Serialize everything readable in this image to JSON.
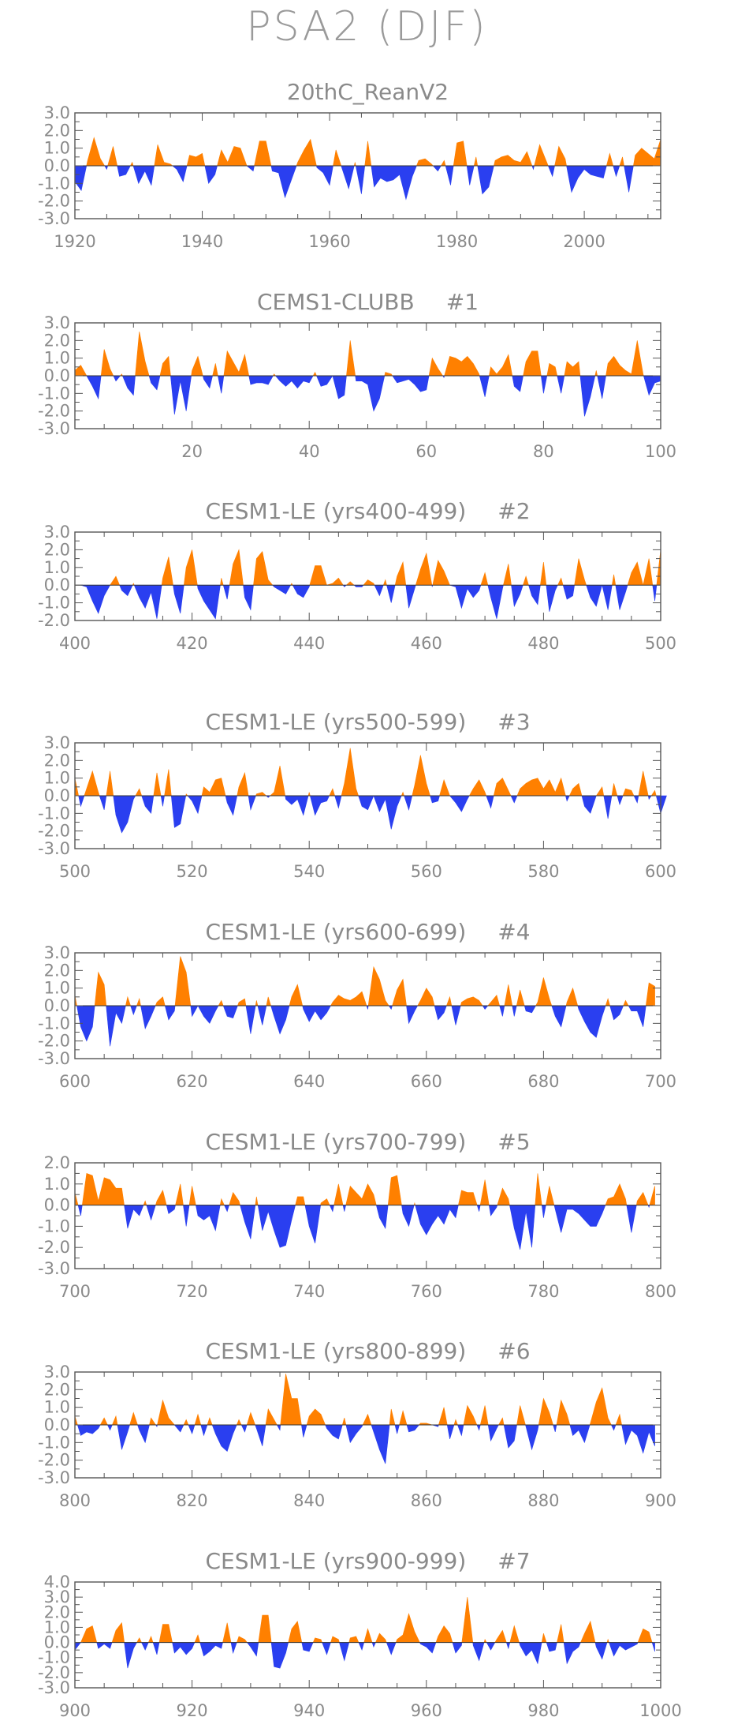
{
  "figure_title": "PSA2 (DJF)",
  "colors": {
    "positive": "#ff8000",
    "negative": "#2a3ff0",
    "axis": "#555555",
    "text": "#8a8a8a"
  },
  "chart_data": [
    {
      "type": "area",
      "title": "20thC_ReanV2",
      "xlim": [
        1920,
        2012
      ],
      "ylim": [
        -3.0,
        3.0
      ],
      "yticks": [
        "3.0",
        "2.0",
        "1.0",
        "0.0",
        "-1.0",
        "-2.0",
        "-3.0"
      ],
      "xticks": [
        1920,
        1940,
        1960,
        1980,
        2000
      ],
      "x_start": 1920,
      "values": [
        -0.9,
        -1.4,
        0.3,
        1.6,
        0.4,
        -0.2,
        1.1,
        -0.6,
        -0.5,
        0.2,
        -1.0,
        -0.3,
        -1.1,
        1.2,
        0.2,
        0.1,
        -0.2,
        -0.9,
        0.6,
        0.5,
        0.7,
        -1.0,
        -0.5,
        0.9,
        0.2,
        1.1,
        1.0,
        0.0,
        -0.3,
        1.4,
        1.4,
        -0.3,
        -0.4,
        -1.8,
        -0.8,
        0.2,
        0.9,
        1.5,
        -0.1,
        -0.4,
        -1.1,
        0.9,
        -0.2,
        -1.3,
        0.2,
        -1.6,
        1.4,
        -1.2,
        -0.7,
        -0.9,
        -0.8,
        -0.5,
        -1.9,
        -0.6,
        0.3,
        0.4,
        0.1,
        -0.3,
        0.3,
        -1.1,
        1.3,
        1.4,
        -1.1,
        0.5,
        -1.6,
        -1.2,
        0.3,
        0.5,
        0.6,
        0.3,
        0.2,
        0.8,
        -0.2,
        1.2,
        0.3,
        -0.6,
        1.1,
        0.4,
        -1.5,
        -0.7,
        -0.2,
        -0.5,
        -0.6,
        -0.7,
        0.7,
        -0.6,
        0.5,
        -1.5,
        0.6,
        1.0,
        0.7,
        0.4,
        1.5
      ]
    },
    {
      "type": "area",
      "title": "CEMS1-CLUBB",
      "title_suffix": "#1",
      "xlim": [
        0,
        100
      ],
      "ylim": [
        -3.0,
        3.0
      ],
      "yticks": [
        "3.0",
        "2.0",
        "1.0",
        "0.0",
        "-1.0",
        "-2.0",
        "-3.0"
      ],
      "xticks": [
        20,
        40,
        60,
        80,
        100
      ],
      "x_start": 0,
      "values": [
        0.3,
        0.6,
        0.0,
        -0.6,
        -1.3,
        1.5,
        0.4,
        -0.3,
        0.1,
        -0.7,
        -1.1,
        2.5,
        0.8,
        -0.4,
        -0.8,
        0.7,
        1.1,
        -2.2,
        -0.3,
        -2.0,
        0.3,
        1.1,
        -0.2,
        -0.7,
        0.7,
        -1.0,
        1.4,
        0.8,
        0.2,
        1.2,
        -0.5,
        -0.4,
        -0.4,
        -0.5,
        0.1,
        -0.3,
        -0.6,
        -0.3,
        -0.7,
        -0.3,
        -0.4,
        0.2,
        -0.6,
        -0.5,
        0.0,
        -1.3,
        -1.1,
        2.0,
        -0.3,
        -0.3,
        -0.5,
        -2.0,
        -1.3,
        0.2,
        0.1,
        -0.4,
        -0.3,
        -0.2,
        -0.5,
        -0.9,
        -0.8,
        1.0,
        0.4,
        -0.1,
        1.1,
        1.0,
        0.8,
        1.1,
        0.7,
        0.1,
        -1.2,
        0.5,
        0.1,
        0.5,
        1.2,
        -0.6,
        -0.9,
        0.8,
        1.4,
        1.4,
        -1.0,
        0.7,
        0.5,
        -1.0,
        0.8,
        0.5,
        0.8,
        -2.3,
        -1.2,
        0.3,
        -1.3,
        0.7,
        1.1,
        0.6,
        0.3,
        0.1,
        2.0,
        0.1,
        -1.1,
        -0.4,
        -0.3
      ]
    },
    {
      "type": "area",
      "title": "CESM1-LE (yrs400-499)",
      "title_suffix": "#2",
      "xlim": [
        400,
        500
      ],
      "ylim": [
        -2.0,
        3.0
      ],
      "yticks": [
        "3.0",
        "2.0",
        "1.0",
        "0.0",
        "-1.0",
        "-2.0"
      ],
      "xticks": [
        400,
        420,
        440,
        460,
        480,
        500
      ],
      "x_start": 400,
      "values": [
        0.0,
        0.0,
        -0.1,
        -0.9,
        -1.6,
        -0.6,
        0.0,
        0.5,
        -0.3,
        -0.6,
        0.1,
        -0.7,
        -1.3,
        -0.4,
        -1.9,
        0.4,
        1.6,
        -0.5,
        -1.6,
        1.0,
        2.0,
        -0.2,
        -0.9,
        -1.4,
        -1.9,
        0.4,
        -0.8,
        1.2,
        2.0,
        -0.7,
        -1.4,
        1.5,
        1.9,
        0.3,
        -0.1,
        -0.3,
        -0.5,
        0.1,
        -0.5,
        -0.7,
        -0.1,
        1.1,
        1.1,
        0.0,
        0.1,
        0.4,
        -0.1,
        0.2,
        -0.1,
        -0.1,
        0.3,
        0.1,
        -0.6,
        0.3,
        -1.0,
        0.5,
        1.3,
        -1.3,
        -0.2,
        0.9,
        1.8,
        -0.1,
        1.4,
        0.8,
        0.0,
        -0.1,
        -1.3,
        -0.2,
        -0.7,
        -0.3,
        0.7,
        -0.7,
        -1.9,
        -0.2,
        1.2,
        -1.2,
        -0.5,
        0.5,
        -0.6,
        -1.1,
        1.3,
        -1.5,
        -0.3,
        0.4,
        -0.8,
        -0.6,
        1.5,
        0.3,
        -0.7,
        -1.2,
        0.0,
        -1.4,
        0.6,
        -1.4,
        -0.4,
        0.7,
        1.3,
        0.0,
        1.5,
        -0.9,
        2.0
      ]
    },
    {
      "type": "area",
      "title": "CESM1-LE (yrs500-599)",
      "title_suffix": "#3",
      "xlim": [
        500,
        600
      ],
      "ylim": [
        -3.0,
        3.0
      ],
      "yticks": [
        "3.0",
        "2.0",
        "1.0",
        "0.0",
        "-1.0",
        "-2.0",
        "-3.0"
      ],
      "xticks": [
        500,
        520,
        540,
        560,
        580,
        600
      ],
      "x_start": 500,
      "values": [
        1.0,
        -0.6,
        0.4,
        1.4,
        0.2,
        -0.8,
        1.4,
        -1.1,
        -2.1,
        -1.5,
        -0.2,
        0.4,
        -0.6,
        -1.0,
        1.3,
        -0.6,
        1.5,
        -1.8,
        -1.6,
        0.1,
        -0.3,
        -1.0,
        0.5,
        0.2,
        0.9,
        1.0,
        -0.4,
        -1.1,
        0.5,
        1.3,
        -0.8,
        0.1,
        0.2,
        -0.1,
        0.2,
        1.7,
        -0.2,
        -0.5,
        -0.2,
        -1.1,
        0.2,
        -1.1,
        -0.4,
        -0.3,
        0.4,
        -0.7,
        0.7,
        2.7,
        0.4,
        -0.6,
        -0.8,
        0.0,
        -0.9,
        -0.2,
        -1.9,
        -0.6,
        0.2,
        -0.8,
        0.6,
        2.3,
        0.7,
        -0.4,
        -0.3,
        0.9,
        0.0,
        -0.4,
        -0.9,
        -0.2,
        0.4,
        0.9,
        0.2,
        -0.7,
        0.7,
        1.0,
        0.3,
        -0.4,
        0.4,
        0.7,
        0.9,
        1.0,
        0.4,
        0.9,
        0.2,
        1.0,
        -0.3,
        0.4,
        0.7,
        -0.6,
        -1.0,
        0.0,
        0.5,
        -1.3,
        0.7,
        -0.5,
        0.4,
        0.3,
        -0.4,
        1.4,
        -0.2,
        0.3,
        -1.0,
        0.0
      ]
    },
    {
      "type": "area",
      "title": "CESM1-LE (yrs600-699)",
      "title_suffix": "#4",
      "xlim": [
        600,
        700
      ],
      "ylim": [
        -3.0,
        3.0
      ],
      "yticks": [
        "3.0",
        "2.0",
        "1.0",
        "0.0",
        "-1.0",
        "-2.0",
        "-3.0"
      ],
      "xticks": [
        600,
        620,
        640,
        660,
        680,
        700
      ],
      "x_start": 600,
      "values": [
        0.6,
        -1.2,
        -2.0,
        -1.2,
        1.9,
        1.2,
        -2.3,
        -0.4,
        -1.0,
        0.5,
        -0.5,
        0.4,
        -1.3,
        -0.6,
        0.2,
        0.5,
        -0.8,
        -0.3,
        2.8,
        1.9,
        -0.6,
        0.0,
        -0.6,
        -1.0,
        -0.3,
        0.3,
        -0.6,
        -0.7,
        0.2,
        0.4,
        -1.6,
        0.3,
        -1.1,
        0.5,
        -0.6,
        -1.6,
        -0.8,
        0.5,
        1.2,
        -0.2,
        -0.9,
        -0.3,
        -0.8,
        -0.4,
        0.2,
        0.6,
        0.4,
        0.3,
        0.5,
        0.8,
        -0.2,
        2.2,
        1.5,
        0.3,
        -0.2,
        0.9,
        1.5,
        -1.0,
        -0.3,
        0.3,
        1.0,
        0.5,
        -0.8,
        -0.4,
        0.5,
        -1.1,
        0.2,
        0.4,
        0.5,
        0.3,
        -0.2,
        0.2,
        0.6,
        -0.6,
        1.2,
        -0.6,
        0.9,
        -0.3,
        -0.4,
        0.2,
        1.6,
        0.4,
        -0.6,
        -1.2,
        0.2,
        1.0,
        -0.2,
        -0.9,
        -1.5,
        -1.8,
        -0.6,
        0.4,
        -0.8,
        -0.5,
        0.3,
        -0.3,
        -0.3,
        -1.2,
        1.3,
        1.1
      ]
    },
    {
      "type": "area",
      "title": "CESM1-LE (yrs700-799)",
      "title_suffix": "#5",
      "xlim": [
        700,
        800
      ],
      "ylim": [
        -3.0,
        2.0
      ],
      "yticks": [
        "2.0",
        "1.0",
        "0.0",
        "-1.0",
        "-2.0",
        "-3.0"
      ],
      "xticks": [
        700,
        720,
        740,
        760,
        780,
        800
      ],
      "x_start": 700,
      "values": [
        0.6,
        -0.5,
        1.5,
        1.4,
        0.2,
        1.3,
        1.2,
        0.8,
        0.8,
        -1.1,
        -0.2,
        -0.5,
        0.2,
        -0.7,
        0.2,
        0.7,
        -0.4,
        -0.2,
        1.0,
        -1.0,
        0.9,
        -0.5,
        -0.7,
        -0.5,
        -1.2,
        0.3,
        -0.3,
        0.6,
        0.2,
        -0.8,
        -1.6,
        0.4,
        -1.2,
        -0.3,
        -1.2,
        -2.0,
        -1.9,
        -0.7,
        0.4,
        0.4,
        -1.0,
        -1.8,
        0.1,
        0.3,
        -0.3,
        1.0,
        -0.3,
        0.9,
        0.6,
        0.3,
        1.0,
        0.5,
        -0.6,
        -1.1,
        1.3,
        1.4,
        -0.4,
        -1.0,
        0.1,
        -0.9,
        -1.4,
        -0.9,
        -0.5,
        -0.9,
        -0.2,
        -0.6,
        0.7,
        0.6,
        0.6,
        -0.3,
        1.2,
        -0.5,
        -0.1,
        0.8,
        0.3,
        -1.1,
        -2.1,
        -0.3,
        -2.0,
        1.5,
        -0.6,
        0.9,
        -0.2,
        -1.3,
        -0.2,
        -0.2,
        -0.4,
        -0.7,
        -1.0,
        -1.0,
        -0.4,
        0.3,
        0.4,
        1.0,
        0.3,
        -1.3,
        0.2,
        0.6,
        -0.1,
        0.9
      ]
    },
    {
      "type": "area",
      "title": "CESM1-LE (yrs800-899)",
      "title_suffix": "#6",
      "xlim": [
        800,
        900
      ],
      "ylim": [
        -3.0,
        3.0
      ],
      "yticks": [
        "3.0",
        "2.0",
        "1.0",
        "0.0",
        "-1.0",
        "-2.0",
        "-3.0"
      ],
      "xticks": [
        800,
        820,
        840,
        860,
        880,
        900
      ],
      "x_start": 800,
      "values": [
        0.5,
        -0.6,
        -0.4,
        -0.5,
        -0.2,
        0.4,
        -0.3,
        0.5,
        -1.4,
        -0.4,
        0.7,
        -0.3,
        -1.0,
        0.4,
        -0.1,
        1.4,
        0.4,
        0.0,
        -0.4,
        0.3,
        -0.5,
        0.6,
        -0.6,
        0.4,
        -0.5,
        -1.2,
        -1.5,
        -0.5,
        0.3,
        -0.4,
        0.7,
        -0.2,
        -1.2,
        0.9,
        0.3,
        -0.3,
        2.9,
        1.5,
        1.5,
        -0.7,
        0.5,
        0.9,
        0.6,
        -0.2,
        -0.6,
        -0.8,
        0.4,
        -1.0,
        -0.5,
        -0.1,
        0.6,
        -0.4,
        -1.4,
        -2.2,
        0.9,
        -0.5,
        0.8,
        -0.4,
        -0.3,
        0.1,
        0.1,
        0.0,
        -0.1,
        1.0,
        -0.8,
        0.3,
        -0.6,
        1.1,
        0.5,
        -0.3,
        1.1,
        -0.9,
        -0.2,
        0.4,
        -1.3,
        -0.9,
        1.1,
        -0.1,
        -1.4,
        -0.3,
        1.5,
        0.7,
        -0.4,
        1.4,
        0.6,
        -0.6,
        -0.3,
        -1.0,
        0.1,
        1.3,
        2.1,
        0.4,
        -0.3,
        0.6,
        -1.1,
        -0.3,
        -0.6,
        -1.6,
        -0.4,
        -1.2
      ]
    },
    {
      "type": "area",
      "title": "CESM1-LE (yrs900-999)",
      "title_suffix": "#7",
      "xlim": [
        900,
        1000
      ],
      "ylim": [
        -3.0,
        4.0
      ],
      "yticks": [
        "4.0",
        "3.0",
        "2.0",
        "1.0",
        "0.0",
        "-1.0",
        "-2.0",
        "-3.0"
      ],
      "xticks": [
        900,
        920,
        940,
        960,
        980,
        1000
      ],
      "x_start": 900,
      "values": [
        -0.5,
        0.0,
        0.9,
        1.1,
        -0.4,
        -0.1,
        -0.4,
        0.8,
        1.3,
        -1.7,
        -0.4,
        0.3,
        -0.5,
        0.4,
        -0.8,
        1.2,
        1.2,
        -0.7,
        -0.3,
        -0.8,
        -0.4,
        0.5,
        -0.9,
        -0.6,
        -0.2,
        -0.4,
        1.3,
        -0.7,
        0.4,
        0.2,
        -0.3,
        -0.9,
        1.8,
        1.8,
        -1.6,
        -1.7,
        -0.7,
        0.9,
        1.4,
        -0.5,
        -0.6,
        0.3,
        0.2,
        -0.8,
        0.4,
        0.2,
        -1.2,
        0.3,
        0.4,
        -0.5,
        0.9,
        -0.3,
        0.6,
        0.2,
        -0.8,
        0.2,
        0.5,
        1.9,
        0.7,
        -0.1,
        -0.3,
        -0.7,
        0.4,
        1.1,
        0.6,
        -0.7,
        -0.2,
        3.0,
        -0.2,
        -1.2,
        0.2,
        -0.5,
        0.2,
        0.8,
        -0.4,
        1.1,
        -0.2,
        -0.9,
        -0.5,
        -1.4,
        0.6,
        -0.6,
        -0.5,
        1.2,
        -1.4,
        -0.6,
        -0.3,
        0.6,
        1.4,
        -0.3,
        -1.1,
        0.2,
        -0.9,
        -0.2,
        -0.5,
        -0.3,
        -0.1,
        0.9,
        0.7,
        -0.6
      ]
    }
  ]
}
